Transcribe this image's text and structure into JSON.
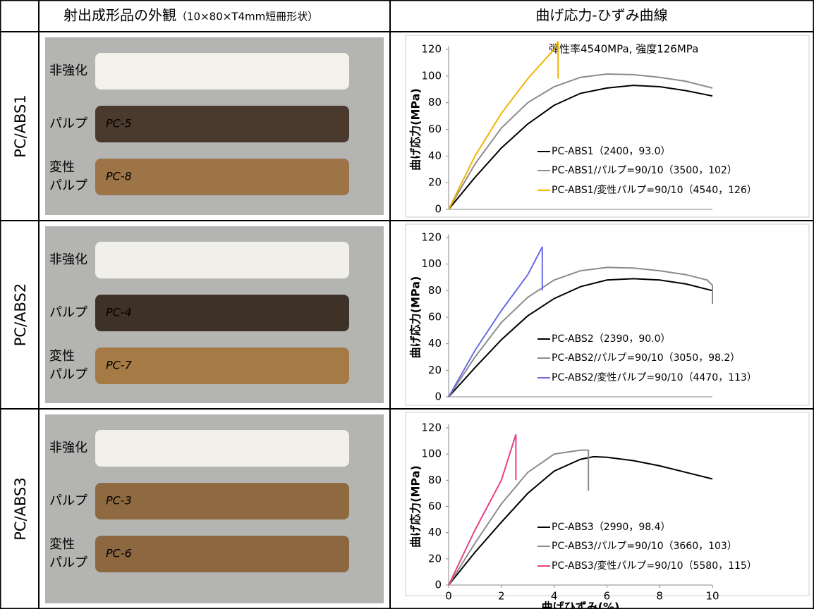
{
  "header": {
    "title_left": "射出成形品の外観",
    "title_left_note": "（10×80×T4mm短冊形状）",
    "title_right": "曲げ応力-ひずみ曲線"
  },
  "rows": [
    {
      "label": "PC/ABS1",
      "photo_labels": [
        [
          "非強化"
        ],
        [
          "パルプ"
        ],
        [
          "変性",
          "パルプ"
        ]
      ],
      "sample_ids": [
        "PC-5",
        "PC-8"
      ]
    },
    {
      "label": "PC/ABS2",
      "photo_labels": [
        [
          "非強化"
        ],
        [
          "パルプ"
        ],
        [
          "変性",
          "パルプ"
        ]
      ],
      "sample_ids": [
        "PC-4",
        "PC-7"
      ]
    },
    {
      "label": "PC/ABS3",
      "photo_labels": [
        [
          "非強化"
        ],
        [
          "パルプ"
        ],
        [
          "変性",
          "パルプ"
        ]
      ],
      "sample_ids": [
        "PC-3",
        "PC-6"
      ]
    }
  ],
  "chart_data": [
    {
      "type": "line",
      "ylabel": "曲げ応力(MPa)",
      "xlim": [
        0,
        10
      ],
      "ylim": [
        0,
        120
      ],
      "yticks": [
        0,
        20,
        40,
        60,
        80,
        100,
        120
      ],
      "annotation": "弾性率4540MPa, 強度126MPa",
      "annotation_color": "#f2b400",
      "series": [
        {
          "name": "PC-ABS1（2400，93.0）",
          "color": "#000000",
          "x": [
            0,
            1,
            2,
            3,
            4,
            5,
            6,
            7,
            8,
            9,
            10
          ],
          "values": [
            0,
            24,
            46,
            64,
            78,
            87,
            91,
            93,
            92,
            89,
            85
          ]
        },
        {
          "name": "PC-ABS1/パルプ=90/10（3500，102）",
          "color": "#8c8c8c",
          "x": [
            0,
            1,
            2,
            3,
            4,
            5,
            6,
            7,
            8,
            9,
            10
          ],
          "values": [
            0,
            34,
            61,
            80,
            92,
            99,
            101.5,
            101,
            99,
            96,
            91
          ]
        },
        {
          "name": "PC-ABS1/変性パルプ=90/10（4540，126）",
          "color": "#f2b400",
          "x": [
            0,
            1,
            2,
            3,
            4,
            4.15,
            4.15
          ],
          "values": [
            0,
            40,
            72,
            98,
            120,
            126,
            98
          ]
        }
      ]
    },
    {
      "type": "line",
      "ylabel": "曲げ応力(MPa)",
      "xlim": [
        0,
        10
      ],
      "ylim": [
        0,
        120
      ],
      "yticks": [
        0,
        20,
        40,
        60,
        80,
        100,
        120
      ],
      "series": [
        {
          "name": "PC-ABS2（2390，90.0）",
          "color": "#000000",
          "x": [
            0,
            1,
            2,
            3,
            4,
            5,
            6,
            7,
            8,
            9,
            10
          ],
          "values": [
            0,
            22,
            43,
            61,
            74,
            83,
            88,
            89,
            88,
            85,
            80
          ]
        },
        {
          "name": "PC-ABS2/パルプ=90/10（3050，98.2）",
          "color": "#8c8c8c",
          "x": [
            0,
            1,
            2,
            3,
            4,
            5,
            6,
            7,
            8,
            9,
            9.8,
            10,
            10
          ],
          "values": [
            0,
            30,
            56,
            75,
            88,
            95,
            97.5,
            97,
            95,
            92,
            88,
            84,
            70
          ]
        },
        {
          "name": "PC-ABS2/変性パルプ=90/10（4470，113）",
          "color": "#6b6be6",
          "x": [
            0,
            1,
            2,
            3,
            3.55,
            3.55
          ],
          "values": [
            0,
            35,
            65,
            92,
            113,
            80
          ]
        }
      ]
    },
    {
      "type": "line",
      "ylabel": "曲げ応力(MPa)",
      "xlabel": "曲げひずみ(%)",
      "xlim": [
        0,
        10
      ],
      "ylim": [
        0,
        120
      ],
      "xticks": [
        0,
        2,
        4,
        6,
        8,
        10
      ],
      "yticks": [
        0,
        20,
        40,
        60,
        80,
        100,
        120
      ],
      "series": [
        {
          "name": "PC-ABS3（2990，98.4）",
          "color": "#000000",
          "x": [
            0,
            1,
            2,
            3,
            4,
            5,
            5.5,
            6,
            7,
            8,
            9,
            10
          ],
          "values": [
            0,
            25,
            48,
            70,
            87,
            96,
            98,
            97.5,
            95,
            91,
            86,
            81
          ]
        },
        {
          "name": "PC-ABS3/パルプ=90/10（3660，103）",
          "color": "#8c8c8c",
          "x": [
            0,
            1,
            2,
            3,
            4,
            5,
            5.3,
            5.3
          ],
          "values": [
            0,
            32,
            62,
            86,
            100,
            103,
            103,
            72
          ]
        },
        {
          "name": "PC-ABS3/変性パルプ=90/10（5580，115）",
          "color": "#e8408a",
          "x": [
            0,
            1,
            2,
            2.55,
            2.55
          ],
          "values": [
            0,
            42,
            80,
            115,
            80
          ]
        }
      ]
    }
  ]
}
